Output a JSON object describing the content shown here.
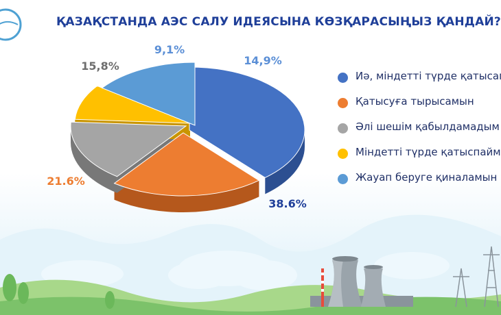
{
  "colors": {
    "title": "#1f3f99",
    "legend_text": "#1f2f66"
  },
  "chart_data": {
    "type": "pie",
    "style": "3d-exploded",
    "title": "ҚАЗАҚСТАНДА АЭС САЛУ ИДЕЯСЫНА КӨЗҚАРАСЫҢЫЗ ҚАНДАЙ?",
    "legend_position": "right",
    "slices": [
      {
        "label": "Иә, міндетті түрде қатысамын",
        "value": 38.6,
        "value_label": "38.6%",
        "color": "#4472c4",
        "side": "#2c4f91",
        "text": "#1f3f99"
      },
      {
        "label": "Қатысуға тырысамын",
        "value": 21.6,
        "value_label": "21.6%",
        "color": "#ed7d31",
        "side": "#b5581c",
        "text": "#ed7d31"
      },
      {
        "label": "Әлі шешім қабылдамадым",
        "value": 15.8,
        "value_label": "15,8%",
        "color": "#a5a5a5",
        "side": "#787878",
        "text": "#6e6e6e"
      },
      {
        "label": "Міндетті түрде қатыспаймын",
        "value": 9.1,
        "value_label": "9,1%",
        "color": "#ffc000",
        "side": "#c99500",
        "text": "#5b8fd6"
      },
      {
        "label": "Жауап беруге қиналамын",
        "value": 14.9,
        "value_label": "14,9%",
        "color": "#5b9bd5",
        "side": "#3a6fa8",
        "text": "#5b8fd6"
      }
    ]
  }
}
